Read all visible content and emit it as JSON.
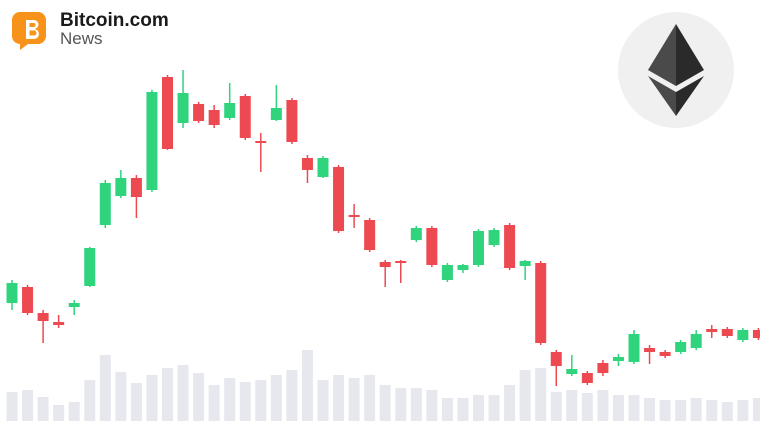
{
  "logo": {
    "name": "Bitcoin.com",
    "sub": "News"
  },
  "chart_data": {
    "type": "candlestick",
    "up_color": "#2fd47c",
    "down_color": "#ec4a50",
    "volume_color": "#e6e8ee",
    "ylim": [
      0,
      428
    ],
    "volume_lim": [
      0,
      428
    ],
    "open": [
      125,
      141,
      115,
      106,
      121,
      142,
      203,
      232,
      250,
      238,
      351,
      305,
      324,
      318,
      310,
      332,
      287,
      308,
      328,
      270,
      251,
      261,
      213,
      208,
      166,
      167,
      188,
      200,
      148,
      158,
      163,
      183,
      203,
      162,
      165,
      76,
      54,
      55,
      65,
      67,
      66,
      80,
      76,
      76,
      80,
      99,
      99,
      88,
      98
    ],
    "high": [
      148,
      143,
      118,
      113,
      128,
      181,
      248,
      258,
      253,
      338,
      353,
      358,
      326,
      323,
      345,
      334,
      295,
      343,
      330,
      273,
      272,
      263,
      224,
      210,
      168,
      168,
      202,
      202,
      165,
      164,
      199,
      200,
      205,
      168,
      167,
      78,
      73,
      57,
      68,
      74,
      98,
      83,
      78,
      88,
      98,
      103,
      101,
      100,
      100
    ],
    "low": [
      118,
      113,
      85,
      100,
      113,
      141,
      200,
      230,
      210,
      236,
      278,
      300,
      305,
      300,
      308,
      288,
      256,
      307,
      284,
      245,
      250,
      195,
      200,
      176,
      141,
      145,
      186,
      161,
      146,
      155,
      161,
      181,
      158,
      148,
      83,
      42,
      52,
      43,
      52,
      62,
      64,
      64,
      70,
      74,
      78,
      90,
      90,
      86,
      88
    ],
    "close": [
      145,
      115,
      107,
      103,
      125,
      180,
      245,
      250,
      231,
      336,
      279,
      335,
      307,
      303,
      325,
      290,
      285,
      320,
      286,
      258,
      270,
      197,
      211,
      178,
      161,
      165,
      200,
      163,
      163,
      163,
      197,
      198,
      160,
      167,
      85,
      62,
      59,
      45,
      55,
      71,
      94,
      76,
      72,
      86,
      94,
      96,
      92,
      98,
      90
    ],
    "volume": [
      29,
      31,
      24,
      16,
      19,
      41,
      66,
      49,
      38,
      46,
      53,
      56,
      48,
      36,
      43,
      39,
      41,
      46,
      51,
      71,
      41,
      46,
      43,
      46,
      36,
      33,
      33,
      31,
      23,
      23,
      26,
      26,
      36,
      51,
      53,
      29,
      31,
      28,
      31,
      26,
      26,
      23,
      21,
      21,
      23,
      21,
      19,
      21,
      23
    ]
  }
}
